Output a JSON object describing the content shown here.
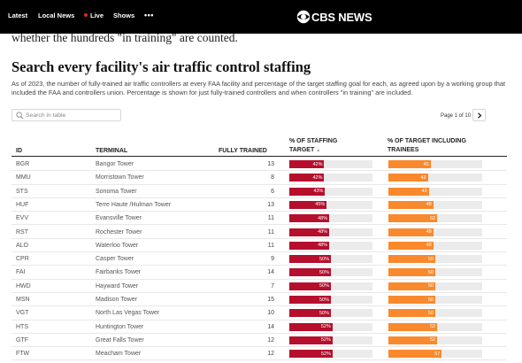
{
  "nav": {
    "items": [
      "Latest",
      "Local News",
      "Live",
      "Shows"
    ],
    "more": "•••",
    "logo_text": "CBS NEWS",
    "live_color": "#e0281f"
  },
  "article": {
    "lead_text": "whether the hundreds \"in training\" are counted.",
    "headline": "Search every facility's air traffic control staffing",
    "description": "As of 2023, the number of fully-trained air traffic controllers at every FAA facility and percentage of the target staffing goal for each, as agreed upon by a working group that included the FAA and controllers union. Percentage is shown for just fully-trained controllers and when controllers \"in training\" are included."
  },
  "table": {
    "search_placeholder": "Search in table",
    "search_icon": "search-icon",
    "page_info": "Page 1 of 10",
    "next_icon": "chevron-right-icon",
    "headers": {
      "id": "ID",
      "terminal": "TERMINAL",
      "fully_trained": "FULLY TRAINED",
      "pct_target_1": "% OF STAFFING",
      "pct_target_2": "TARGET",
      "pct_trainees_1": "% OF TARGET INCLUDING",
      "pct_trainees_2": "TRAINEES"
    },
    "sort_indicator": "▲",
    "colors": {
      "staffing": "#b50f2d",
      "trainees": "#f9892c",
      "track": "#ebebeb"
    },
    "rows": [
      {
        "id": "BGR",
        "terminal": "Bangor Tower",
        "fully_trained": 13,
        "pct_target": 42,
        "pct_trainees": 45
      },
      {
        "id": "MMU",
        "terminal": "Morristown Tower",
        "fully_trained": 8,
        "pct_target": 42,
        "pct_trainees": 42
      },
      {
        "id": "STS",
        "terminal": "Sonoma Tower",
        "fully_trained": 6,
        "pct_target": 43,
        "pct_trainees": 43
      },
      {
        "id": "HUF",
        "terminal": "Terre Haute /Hulman Tower",
        "fully_trained": 13,
        "pct_target": 45,
        "pct_trainees": 48
      },
      {
        "id": "EVV",
        "terminal": "Evansville Tower",
        "fully_trained": 11,
        "pct_target": 48,
        "pct_trainees": 52
      },
      {
        "id": "RST",
        "terminal": "Rochester Tower",
        "fully_trained": 11,
        "pct_target": 48,
        "pct_trainees": 48
      },
      {
        "id": "ALO",
        "terminal": "Waterloo Tower",
        "fully_trained": 11,
        "pct_target": 48,
        "pct_trainees": 48
      },
      {
        "id": "CPR",
        "terminal": "Casper Tower",
        "fully_trained": 9,
        "pct_target": 50,
        "pct_trainees": 50
      },
      {
        "id": "FAI",
        "terminal": "Fairbanks Tower",
        "fully_trained": 14,
        "pct_target": 50,
        "pct_trainees": 50
      },
      {
        "id": "HWD",
        "terminal": "Hayward Tower",
        "fully_trained": 7,
        "pct_target": 50,
        "pct_trainees": 50
      },
      {
        "id": "MSN",
        "terminal": "Madison Tower",
        "fully_trained": 15,
        "pct_target": 50,
        "pct_trainees": 50
      },
      {
        "id": "VGT",
        "terminal": "North Las Vegas Tower",
        "fully_trained": 10,
        "pct_target": 50,
        "pct_trainees": 50
      },
      {
        "id": "HTS",
        "terminal": "Huntington Tower",
        "fully_trained": 14,
        "pct_target": 52,
        "pct_trainees": 52
      },
      {
        "id": "GTF",
        "terminal": "Great Falls Tower",
        "fully_trained": 12,
        "pct_target": 52,
        "pct_trainees": 52
      },
      {
        "id": "FTW",
        "terminal": "Meacham Tower",
        "fully_trained": 12,
        "pct_target": 52,
        "pct_trainees": 57
      }
    ]
  }
}
